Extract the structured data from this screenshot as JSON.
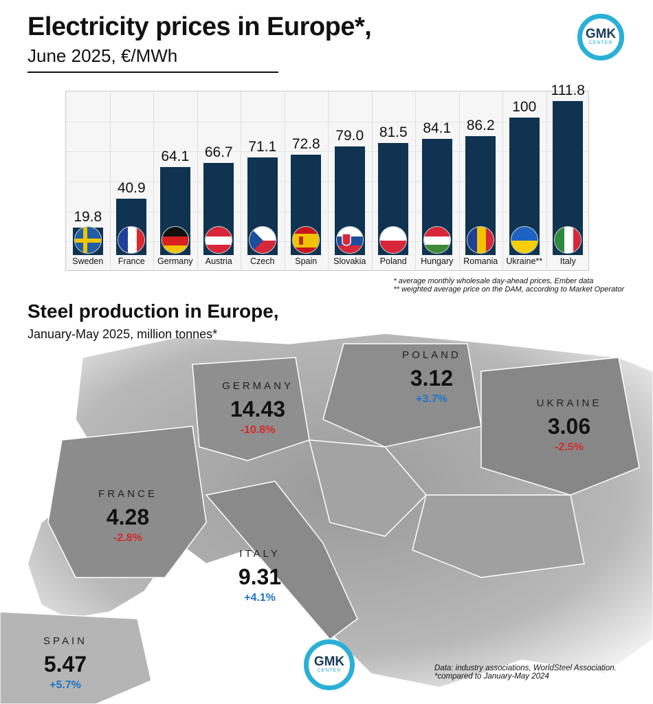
{
  "header": {
    "title": "Electricity prices in Europe*,",
    "subtitle": "June 2025, €/MWh"
  },
  "logo": {
    "text": "GMK",
    "subtext": "CENTER"
  },
  "chart_data": [
    {
      "type": "bar",
      "title": "Electricity prices in Europe*,",
      "subtitle": "June 2025, €/MWh",
      "categories": [
        "Sweden",
        "France",
        "Germany",
        "Austria",
        "Czech",
        "Spain",
        "Slovakia",
        "Poland",
        "Hungary",
        "Romania",
        "Ukraine**",
        "Italy"
      ],
      "values": [
        19.8,
        40.9,
        64.1,
        66.7,
        71.1,
        72.8,
        79.0,
        81.5,
        84.1,
        86.2,
        100,
        111.8
      ],
      "value_labels": [
        "19.8",
        "40.9",
        "64.1",
        "66.7",
        "71.1",
        "72.8",
        "79.0",
        "81.5",
        "84.1",
        "86.2",
        "100",
        "111.8"
      ],
      "bar_color": "#0f3350",
      "grid": true,
      "footnotes": [
        "* average monthly wholesale day-ahead prices, Ember data",
        "** weighted average price on the DAM, according to Market Operator"
      ]
    }
  ],
  "steel": {
    "title": "Steel production in Europe,",
    "subtitle": "January-May 2025, million tonnes*",
    "countries": [
      {
        "name": "GERMANY",
        "value": "14.43",
        "change": "-10.8%",
        "dir": "neg"
      },
      {
        "name": "POLAND",
        "value": "3.12",
        "change": "+3.7%",
        "dir": "pos"
      },
      {
        "name": "UKRAINE",
        "value": "3.06",
        "change": "-2.5%",
        "dir": "neg"
      },
      {
        "name": "FRANCE",
        "value": "4.28",
        "change": "-2.8%",
        "dir": "neg"
      },
      {
        "name": "ITALY",
        "value": "9.31",
        "change": "+4.1%",
        "dir": "pos"
      },
      {
        "name": "SPAIN",
        "value": "5.47",
        "change": "+5.7%",
        "dir": "pos"
      }
    ],
    "source": "Data: industry associations, WorldSteel Association.",
    "source_note": "*compared to January-May 2024"
  },
  "colors": {
    "negative": "#d42a2a",
    "positive": "#1f74c9",
    "accent": "#2ab0d6"
  }
}
